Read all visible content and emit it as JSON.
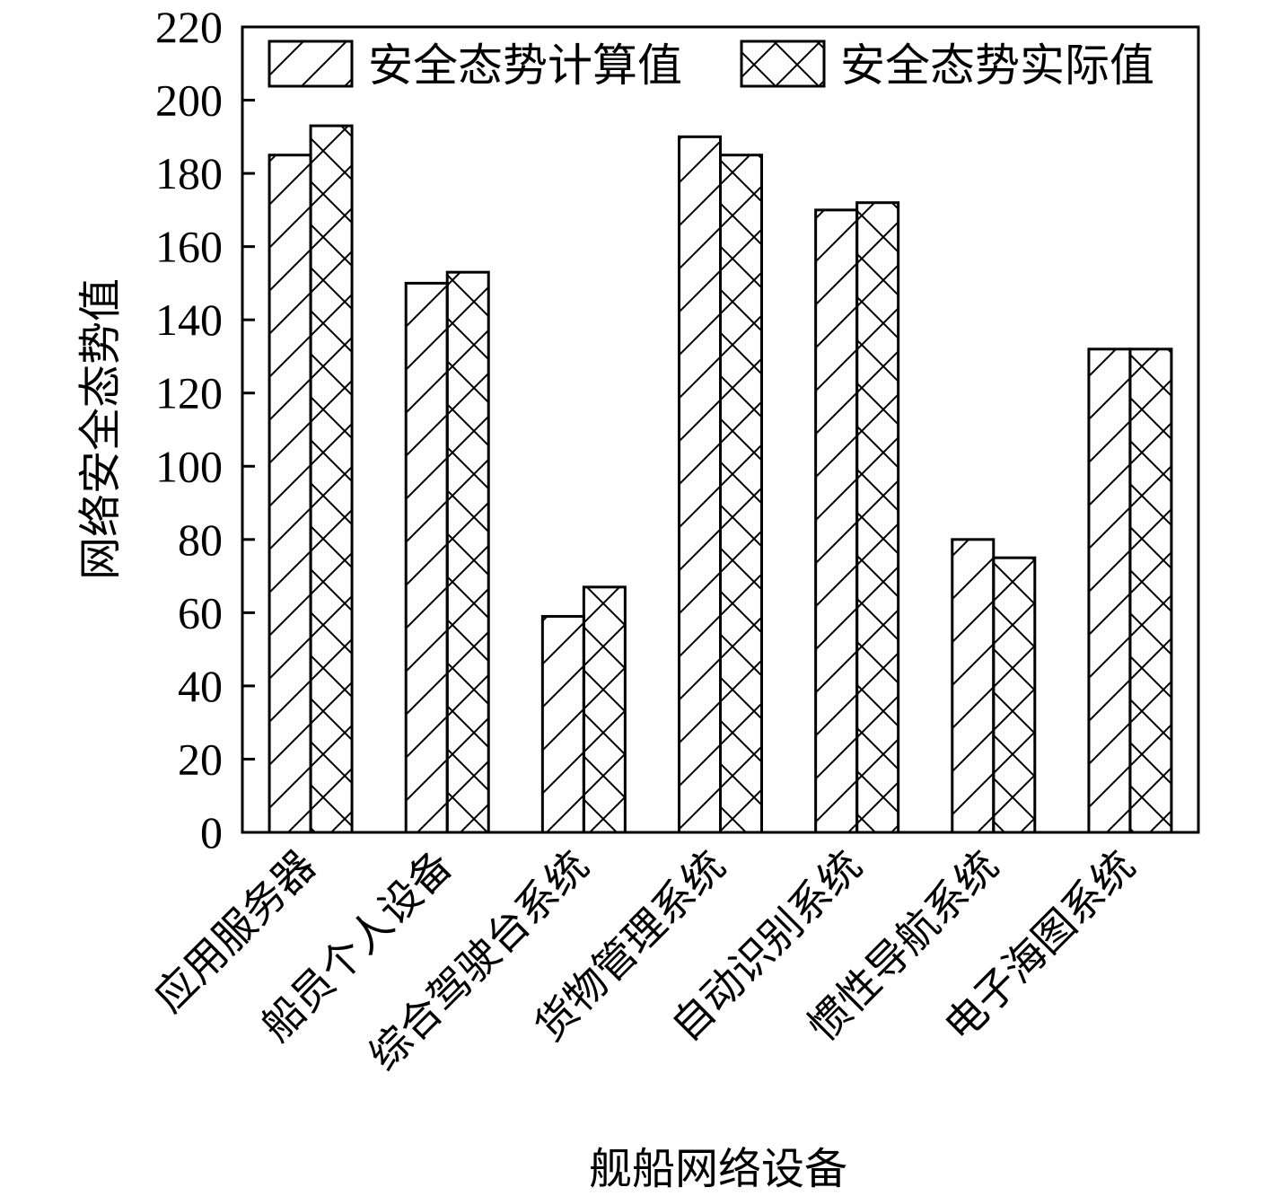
{
  "chart_data": {
    "type": "bar",
    "title": "",
    "xlabel": "舰船网络设备",
    "ylabel": "网络安全态势值",
    "ylim": [
      0,
      220
    ],
    "yticks": [
      0,
      20,
      40,
      60,
      80,
      100,
      120,
      140,
      160,
      180,
      200,
      220
    ],
    "grid": false,
    "legend_position": "top",
    "categories": [
      "应用服务器",
      "船员个人设备",
      "综合驾驶台系统",
      "货物管理系统",
      "自动识别系统",
      "惯性导航系统",
      "电子海图系统"
    ],
    "series": [
      {
        "name": "安全态势计算值",
        "pattern": "diagonal-hatch",
        "values": [
          185,
          150,
          59,
          190,
          170,
          80,
          132
        ]
      },
      {
        "name": "安全态势实际值",
        "pattern": "cross-hatch",
        "values": [
          193,
          153,
          67,
          185,
          172,
          75,
          132
        ]
      }
    ]
  }
}
